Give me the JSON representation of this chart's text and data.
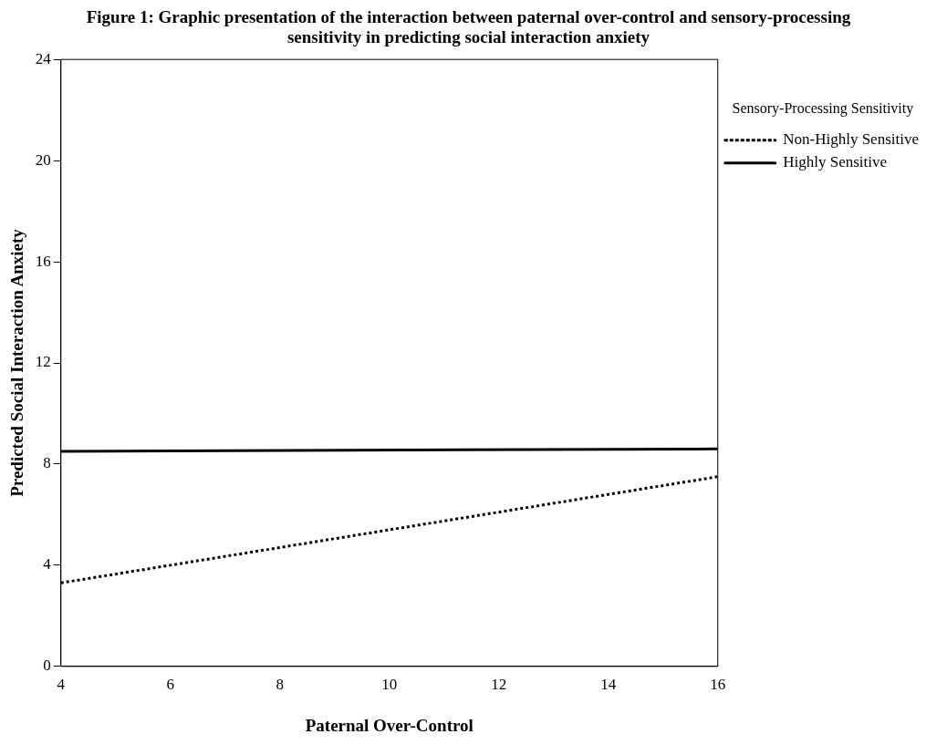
{
  "chart_data": {
    "type": "line",
    "title": "Figure 1: Graphic presentation of the interaction between paternal over-control and sensory-processing sensitivity in predicting social interaction anxiety",
    "xlabel": "Paternal Over-Control",
    "ylabel": "Predicted Social Interaction Anxiety",
    "legend_title": "Sensory-Processing Sensitivity",
    "legend": "right",
    "x": [
      4,
      16
    ],
    "xlim": [
      4,
      16
    ],
    "xticks": [
      4,
      6,
      8,
      10,
      12,
      14,
      16
    ],
    "ylim": [
      0,
      24
    ],
    "yticks": [
      0,
      4,
      8,
      12,
      16,
      20,
      24
    ],
    "marker": "none",
    "series": [
      {
        "name": "Non-Highly Sensitive",
        "color": "#000000",
        "line_style": "dotted",
        "values": [
          3.3,
          7.5
        ]
      },
      {
        "name": "Highly Sensitive",
        "color": "#000000",
        "line_style": "solid",
        "values": [
          8.5,
          8.6
        ]
      }
    ]
  }
}
